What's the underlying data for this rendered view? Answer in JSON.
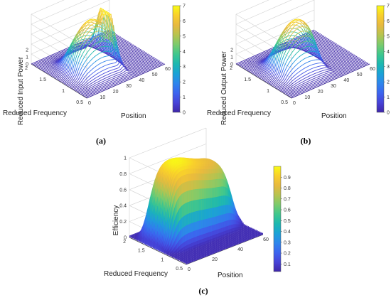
{
  "colormap_stops": [
    "#3e26a8",
    "#4743d8",
    "#3c64ef",
    "#2d86ec",
    "#1aa2d6",
    "#1cb8b0",
    "#3fc78d",
    "#7ccb6c",
    "#b7c34f",
    "#e7b93f",
    "#f9cf2c",
    "#f9fb15"
  ],
  "chart_data": [
    {
      "type": "surface",
      "caption": "(a)",
      "xlabel": "Position",
      "ylabel": "Reduced Frequency",
      "zlabel": "Reduced Input Power",
      "xticks": [
        "0",
        "10",
        "20",
        "30",
        "40",
        "50",
        "60"
      ],
      "yticks": [
        "0.5",
        "1",
        "1.5",
        "2"
      ],
      "zticks": [
        "0",
        "1",
        "2"
      ],
      "colorbar_ticks": [
        "0",
        "1",
        "2",
        "3",
        "4",
        "5",
        "6",
        "7"
      ],
      "xlim": [
        0,
        60
      ],
      "ylim": [
        0.5,
        2
      ],
      "zlim": [
        0,
        7
      ],
      "shape": "input",
      "peak": 7
    },
    {
      "type": "surface",
      "caption": "(b)",
      "xlabel": "Position",
      "ylabel": "Reduced Frequency",
      "zlabel": "Reduced Output Power",
      "xticks": [
        "0",
        "10",
        "20",
        "30",
        "40",
        "50",
        "60"
      ],
      "yticks": [
        "0.5",
        "1",
        "1.5",
        "2"
      ],
      "zticks": [
        "0",
        "1",
        "2"
      ],
      "colorbar_ticks": [
        "0",
        "1",
        "2",
        "3",
        "4",
        "5",
        "6",
        "7"
      ],
      "xlim": [
        0,
        60
      ],
      "ylim": [
        0.5,
        2
      ],
      "zlim": [
        0,
        7
      ],
      "shape": "output",
      "peak": 7
    },
    {
      "type": "surface",
      "caption": "(c)",
      "xlabel": "Position",
      "ylabel": "Reduced Frequency",
      "zlabel": "Efficiency",
      "xticks": [
        "0",
        "20",
        "40",
        "60"
      ],
      "yticks": [
        "0.5",
        "1",
        "1.5",
        "2"
      ],
      "zticks": [
        "0",
        "0.2",
        "0.4",
        "0.6",
        "0.8",
        "1"
      ],
      "colorbar_ticks": [
        "0.1",
        "0.2",
        "0.3",
        "0.4",
        "0.5",
        "0.6",
        "0.7",
        "0.8",
        "0.9"
      ],
      "xlim": [
        0,
        60
      ],
      "ylim": [
        0.5,
        2
      ],
      "zlim": [
        0,
        1
      ],
      "shape": "efficiency",
      "peak": 1
    }
  ]
}
